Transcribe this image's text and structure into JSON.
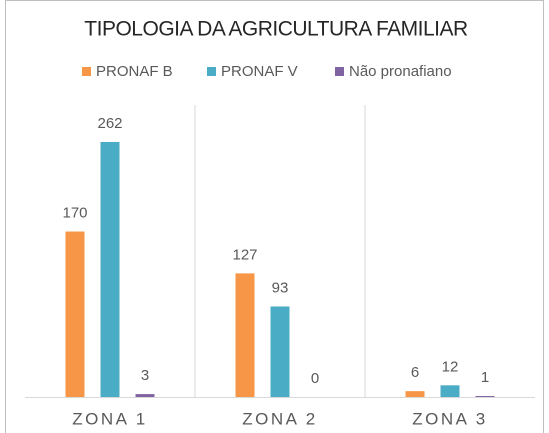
{
  "chart_data": {
    "type": "bar",
    "title": "TIPOLOGIA DA AGRICULTURA FAMILIAR",
    "categories": [
      "ZONA 1",
      "ZONA 2",
      "ZONA 3"
    ],
    "series": [
      {
        "name": "PRONAF B",
        "color": "#f79646",
        "values": [
          170,
          127,
          6
        ]
      },
      {
        "name": "PRONAF V",
        "color": "#4bacc6",
        "values": [
          262,
          93,
          12
        ]
      },
      {
        "name": "Não pronafiano",
        "color": "#8064a2",
        "values": [
          3,
          0,
          1
        ]
      }
    ],
    "ylim": [
      0,
      300
    ],
    "legend": "top"
  }
}
